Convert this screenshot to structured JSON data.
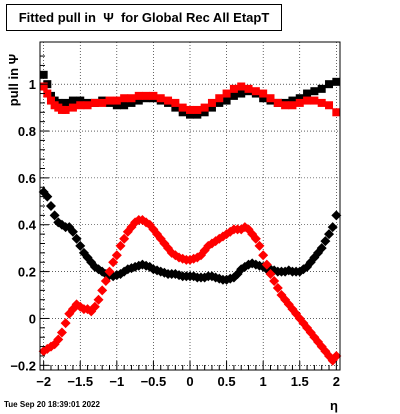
{
  "chart_data": {
    "type": "scatter",
    "title": "Fitted pull in  Ψ  for Global Rec All EtapT",
    "xlabel": "η",
    "ylabel": "pull in  Ψ",
    "timestamp": "Tue Sep 20 18:39:01 2022",
    "xlim": [
      -2.05,
      2.05
    ],
    "ylim": [
      -0.22,
      1.18
    ],
    "x_ticks": [
      -2,
      -1.5,
      -1,
      -0.5,
      0,
      0.5,
      1,
      1.5,
      2
    ],
    "x_tick_labels": [
      "−2",
      "−1.5",
      "−1",
      "−0.5",
      "0",
      "0.5",
      "1",
      "1.5",
      "2"
    ],
    "y_ticks": [
      -0.2,
      0,
      0.2,
      0.4,
      0.6,
      0.8,
      1
    ],
    "y_tick_labels": [
      "−0.2",
      "0",
      "0.2",
      "0.4",
      "0.6",
      "0.8",
      "1"
    ],
    "grid": true,
    "series": [
      {
        "marker": "square",
        "color": "#000000",
        "x": [
          -2.0,
          -1.95,
          -1.9,
          -1.85,
          -1.8,
          -1.75,
          -1.7,
          -1.6,
          -1.5,
          -1.4,
          -1.3,
          -1.2,
          -1.1,
          -1.0,
          -0.9,
          -0.8,
          -0.7,
          -0.6,
          -0.5,
          -0.4,
          -0.3,
          -0.2,
          -0.1,
          0.0,
          0.1,
          0.2,
          0.3,
          0.4,
          0.5,
          0.6,
          0.7,
          0.8,
          0.9,
          1.0,
          1.1,
          1.2,
          1.3,
          1.4,
          1.5,
          1.6,
          1.7,
          1.8,
          1.9,
          2.0
        ],
        "y": [
          1.04,
          1.0,
          0.95,
          0.93,
          0.92,
          0.91,
          0.92,
          0.93,
          0.93,
          0.92,
          0.92,
          0.93,
          0.92,
          0.91,
          0.91,
          0.92,
          0.93,
          0.94,
          0.94,
          0.93,
          0.92,
          0.9,
          0.88,
          0.87,
          0.87,
          0.88,
          0.9,
          0.92,
          0.93,
          0.95,
          0.96,
          0.97,
          0.96,
          0.94,
          0.93,
          0.92,
          0.92,
          0.93,
          0.94,
          0.96,
          0.97,
          0.98,
          1.0,
          1.01
        ]
      },
      {
        "marker": "square",
        "color": "#ff0000",
        "x": [
          -2.0,
          -1.95,
          -1.9,
          -1.85,
          -1.8,
          -1.75,
          -1.7,
          -1.6,
          -1.5,
          -1.4,
          -1.3,
          -1.2,
          -1.1,
          -1.0,
          -0.9,
          -0.8,
          -0.7,
          -0.6,
          -0.5,
          -0.4,
          -0.3,
          -0.2,
          -0.1,
          0.0,
          0.1,
          0.2,
          0.3,
          0.4,
          0.5,
          0.6,
          0.7,
          0.8,
          0.9,
          1.0,
          1.1,
          1.2,
          1.3,
          1.4,
          1.5,
          1.6,
          1.7,
          1.8,
          1.9,
          2.0
        ],
        "y": [
          0.99,
          0.96,
          0.93,
          0.91,
          0.9,
          0.89,
          0.89,
          0.9,
          0.91,
          0.91,
          0.92,
          0.92,
          0.93,
          0.93,
          0.94,
          0.94,
          0.95,
          0.95,
          0.95,
          0.94,
          0.93,
          0.92,
          0.9,
          0.89,
          0.89,
          0.9,
          0.92,
          0.94,
          0.96,
          0.98,
          0.99,
          0.98,
          0.97,
          0.96,
          0.94,
          0.92,
          0.91,
          0.91,
          0.92,
          0.93,
          0.93,
          0.92,
          0.91,
          0.88
        ]
      },
      {
        "marker": "diamond",
        "color": "#000000",
        "x": [
          -2.0,
          -1.95,
          -1.9,
          -1.85,
          -1.8,
          -1.75,
          -1.7,
          -1.65,
          -1.6,
          -1.55,
          -1.5,
          -1.45,
          -1.4,
          -1.35,
          -1.3,
          -1.25,
          -1.2,
          -1.15,
          -1.1,
          -1.05,
          -1.0,
          -0.95,
          -0.9,
          -0.85,
          -0.8,
          -0.75,
          -0.7,
          -0.65,
          -0.6,
          -0.55,
          -0.5,
          -0.45,
          -0.4,
          -0.35,
          -0.3,
          -0.25,
          -0.2,
          -0.15,
          -0.1,
          -0.05,
          0.0,
          0.05,
          0.1,
          0.15,
          0.2,
          0.25,
          0.3,
          0.35,
          0.4,
          0.45,
          0.5,
          0.55,
          0.6,
          0.65,
          0.7,
          0.75,
          0.8,
          0.85,
          0.9,
          0.95,
          1.0,
          1.05,
          1.1,
          1.15,
          1.2,
          1.25,
          1.3,
          1.35,
          1.4,
          1.45,
          1.5,
          1.55,
          1.6,
          1.65,
          1.7,
          1.75,
          1.8,
          1.85,
          1.9,
          1.95,
          2.0
        ],
        "y": [
          0.54,
          0.52,
          0.48,
          0.44,
          0.41,
          0.4,
          0.39,
          0.39,
          0.37,
          0.34,
          0.31,
          0.28,
          0.26,
          0.24,
          0.22,
          0.21,
          0.2,
          0.19,
          0.185,
          0.18,
          0.185,
          0.19,
          0.2,
          0.21,
          0.215,
          0.22,
          0.225,
          0.23,
          0.225,
          0.22,
          0.21,
          0.205,
          0.2,
          0.195,
          0.19,
          0.19,
          0.19,
          0.185,
          0.18,
          0.18,
          0.18,
          0.18,
          0.175,
          0.175,
          0.175,
          0.18,
          0.18,
          0.175,
          0.17,
          0.165,
          0.165,
          0.17,
          0.175,
          0.19,
          0.21,
          0.22,
          0.23,
          0.235,
          0.23,
          0.225,
          0.22,
          0.21,
          0.21,
          0.205,
          0.2,
          0.2,
          0.2,
          0.205,
          0.2,
          0.2,
          0.2,
          0.21,
          0.22,
          0.24,
          0.26,
          0.28,
          0.3,
          0.33,
          0.36,
          0.39,
          0.44
        ]
      },
      {
        "marker": "diamond",
        "color": "#ff0000",
        "x": [
          -2.0,
          -1.95,
          -1.9,
          -1.85,
          -1.8,
          -1.75,
          -1.7,
          -1.65,
          -1.6,
          -1.55,
          -1.5,
          -1.45,
          -1.4,
          -1.35,
          -1.3,
          -1.25,
          -1.2,
          -1.15,
          -1.1,
          -1.05,
          -1.0,
          -0.95,
          -0.9,
          -0.85,
          -0.8,
          -0.75,
          -0.7,
          -0.65,
          -0.6,
          -0.55,
          -0.5,
          -0.45,
          -0.4,
          -0.35,
          -0.3,
          -0.25,
          -0.2,
          -0.15,
          -0.1,
          -0.05,
          0.0,
          0.05,
          0.1,
          0.15,
          0.2,
          0.25,
          0.3,
          0.35,
          0.4,
          0.45,
          0.5,
          0.55,
          0.6,
          0.65,
          0.7,
          0.75,
          0.8,
          0.85,
          0.9,
          0.95,
          1.0,
          1.05,
          1.1,
          1.15,
          1.2,
          1.25,
          1.3,
          1.35,
          1.4,
          1.45,
          1.5,
          1.55,
          1.6,
          1.65,
          1.7,
          1.75,
          1.8,
          1.85,
          1.9,
          1.95,
          2.0
        ],
        "y": [
          -0.14,
          -0.13,
          -0.12,
          -0.11,
          -0.09,
          -0.06,
          -0.02,
          0.02,
          0.04,
          0.06,
          0.05,
          0.04,
          0.04,
          0.03,
          0.05,
          0.08,
          0.12,
          0.16,
          0.2,
          0.24,
          0.27,
          0.31,
          0.34,
          0.37,
          0.39,
          0.41,
          0.42,
          0.42,
          0.41,
          0.4,
          0.38,
          0.36,
          0.34,
          0.32,
          0.3,
          0.28,
          0.27,
          0.26,
          0.255,
          0.25,
          0.25,
          0.255,
          0.26,
          0.27,
          0.29,
          0.31,
          0.32,
          0.33,
          0.34,
          0.35,
          0.36,
          0.37,
          0.38,
          0.38,
          0.38,
          0.39,
          0.38,
          0.36,
          0.34,
          0.31,
          0.27,
          0.23,
          0.19,
          0.16,
          0.13,
          0.1,
          0.08,
          0.06,
          0.04,
          0.02,
          0.0,
          -0.02,
          -0.04,
          -0.06,
          -0.08,
          -0.1,
          -0.12,
          -0.14,
          -0.16,
          -0.18,
          -0.16
        ]
      }
    ]
  }
}
